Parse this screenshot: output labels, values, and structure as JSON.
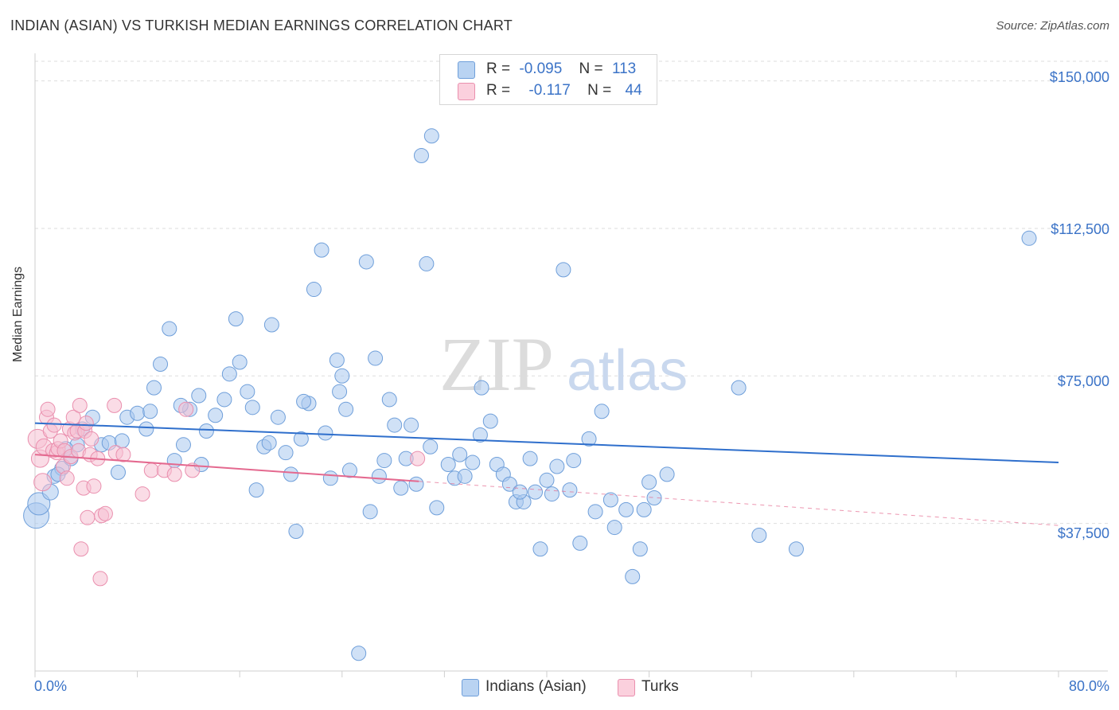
{
  "title": "INDIAN (ASIAN) VS TURKISH MEDIAN EARNINGS CORRELATION CHART",
  "source": "Source: ZipAtlas.com",
  "watermark": {
    "zip": "ZIP",
    "atlas": "atlas"
  },
  "colors": {
    "blue_fill": "#a9c8ee",
    "blue_stroke": "#6f9fda",
    "blue_line": "#2f6fcc",
    "pink_fill": "#f6bfd1",
    "pink_stroke": "#ea8fae",
    "pink_line": "#e4698f",
    "accent_text": "#3b73c7",
    "grid": "#dedede"
  },
  "stats": [
    {
      "r_label": "R =",
      "r_value": "-0.095",
      "n_label": "N =",
      "n_value": "113"
    },
    {
      "r_label": "R =",
      "r_value": "-0.117",
      "n_label": "N =",
      "n_value": "44"
    }
  ],
  "chart_data": {
    "type": "scatter",
    "title": "INDIAN (ASIAN) VS TURKISH MEDIAN EARNINGS CORRELATION CHART",
    "xlabel": "",
    "ylabel": "Median Earnings",
    "x_tick_labels": [
      "0.0%",
      "80.0%"
    ],
    "y_tick_labels": [
      "$150,000",
      "$112,500",
      "$75,000",
      "$37,500"
    ],
    "y_ticks": [
      150000,
      112500,
      75000,
      37500
    ],
    "xlim": [
      0,
      80
    ],
    "ylim": [
      0,
      157000
    ],
    "grid": true,
    "legend_placement": "bottom",
    "series": [
      {
        "name": "Indians (Asian)",
        "color": "#a9c8ee",
        "trend": {
          "x0": 0,
          "y0": 63000,
          "x1": 80,
          "y1": 53000
        },
        "points": [
          [
            0.1,
            39500,
            16
          ],
          [
            0.3,
            42500,
            14
          ],
          [
            1.2,
            45500,
            10
          ],
          [
            1.5,
            49500,
            9
          ],
          [
            2.1,
            51500,
            9
          ],
          [
            2.8,
            54000,
            9
          ],
          [
            3.3,
            57500,
            9
          ],
          [
            3.7,
            61500,
            9
          ],
          [
            1.8,
            50000,
            9
          ],
          [
            2.4,
            56500,
            9
          ],
          [
            4.5,
            64500,
            9
          ],
          [
            5.2,
            57500,
            9
          ],
          [
            5.8,
            58000,
            9
          ],
          [
            6.5,
            50500,
            9
          ],
          [
            7.2,
            64500,
            9
          ],
          [
            8.0,
            65500,
            9
          ],
          [
            8.7,
            61500,
            9
          ],
          [
            9.3,
            72000,
            9
          ],
          [
            9.8,
            78000,
            9
          ],
          [
            10.5,
            87000,
            9
          ],
          [
            10.9,
            53500,
            9
          ],
          [
            11.6,
            57500,
            9
          ],
          [
            12.1,
            66500,
            9
          ],
          [
            12.8,
            70000,
            9
          ],
          [
            13.4,
            61000,
            9
          ],
          [
            14.1,
            65000,
            9
          ],
          [
            14.8,
            69000,
            9
          ],
          [
            15.2,
            75500,
            9
          ],
          [
            15.7,
            89500,
            9
          ],
          [
            16.0,
            78500,
            9
          ],
          [
            16.6,
            71000,
            9
          ],
          [
            17.0,
            67000,
            9
          ],
          [
            17.3,
            46000,
            9
          ],
          [
            17.9,
            57000,
            9
          ],
          [
            18.5,
            88000,
            9
          ],
          [
            19.0,
            64500,
            9
          ],
          [
            19.6,
            55500,
            9
          ],
          [
            20.0,
            50000,
            9
          ],
          [
            20.4,
            35500,
            9
          ],
          [
            20.8,
            59000,
            9
          ],
          [
            21.4,
            68000,
            9
          ],
          [
            21.8,
            97000,
            9
          ],
          [
            22.4,
            107000,
            9
          ],
          [
            22.7,
            60500,
            9
          ],
          [
            23.1,
            49000,
            9
          ],
          [
            23.6,
            79000,
            9
          ],
          [
            24.0,
            75000,
            9
          ],
          [
            24.3,
            66500,
            9
          ],
          [
            24.6,
            51000,
            9
          ],
          [
            25.3,
            4500,
            9
          ],
          [
            25.9,
            104000,
            9
          ],
          [
            26.2,
            40500,
            9
          ],
          [
            26.6,
            79500,
            9
          ],
          [
            27.3,
            53500,
            9
          ],
          [
            27.7,
            69000,
            9
          ],
          [
            28.1,
            62500,
            9
          ],
          [
            28.6,
            46500,
            9
          ],
          [
            29.0,
            54000,
            9
          ],
          [
            29.4,
            62500,
            9
          ],
          [
            29.8,
            47500,
            9
          ],
          [
            30.2,
            131000,
            9
          ],
          [
            30.6,
            103500,
            9
          ],
          [
            31.0,
            136000,
            9
          ],
          [
            31.4,
            41500,
            9
          ],
          [
            32.3,
            52500,
            9
          ],
          [
            32.8,
            49000,
            9
          ],
          [
            33.2,
            55000,
            9
          ],
          [
            33.6,
            49500,
            9
          ],
          [
            34.8,
            60000,
            9
          ],
          [
            34.9,
            72000,
            9
          ],
          [
            35.6,
            63500,
            9
          ],
          [
            36.1,
            52500,
            9
          ],
          [
            36.6,
            50000,
            9
          ],
          [
            37.1,
            47500,
            9
          ],
          [
            37.6,
            43000,
            9
          ],
          [
            38.2,
            43000,
            9
          ],
          [
            38.7,
            54000,
            9
          ],
          [
            39.1,
            45500,
            9
          ],
          [
            39.5,
            31000,
            9
          ],
          [
            40.4,
            45000,
            9
          ],
          [
            40.8,
            52000,
            9
          ],
          [
            41.3,
            102000,
            9
          ],
          [
            41.8,
            46000,
            9
          ],
          [
            42.6,
            32500,
            9
          ],
          [
            43.3,
            59000,
            9
          ],
          [
            43.8,
            40500,
            9
          ],
          [
            44.3,
            66000,
            9
          ],
          [
            45.3,
            36500,
            9
          ],
          [
            46.2,
            41000,
            9
          ],
          [
            46.7,
            24000,
            9
          ],
          [
            47.3,
            31000,
            9
          ],
          [
            47.6,
            41000,
            9
          ],
          [
            48.4,
            44000,
            9
          ],
          [
            49.4,
            50000,
            9
          ],
          [
            55.0,
            72000,
            9
          ],
          [
            56.6,
            34500,
            9
          ],
          [
            59.5,
            31000,
            9
          ],
          [
            77.7,
            110000,
            9
          ],
          [
            6.8,
            58500,
            9
          ],
          [
            9.0,
            66000,
            9
          ],
          [
            11.4,
            67500,
            9
          ],
          [
            13.0,
            52500,
            9
          ],
          [
            18.3,
            58000,
            9
          ],
          [
            21.0,
            68500,
            9
          ],
          [
            23.8,
            71000,
            9
          ],
          [
            26.9,
            49500,
            9
          ],
          [
            30.9,
            57000,
            9
          ],
          [
            34.2,
            53000,
            9
          ],
          [
            37.9,
            45500,
            9
          ],
          [
            40.0,
            48500,
            9
          ],
          [
            42.1,
            53500,
            9
          ],
          [
            45.0,
            43500,
            9
          ],
          [
            48.0,
            48000,
            9
          ]
        ]
      },
      {
        "name": "Turks",
        "color": "#f6bfd1",
        "trend": {
          "x0": 0,
          "y0": 55000,
          "x1": 30,
          "y1": 48200
        },
        "trend_extended": {
          "x0": 30,
          "y0": 48200,
          "x1": 80,
          "y1": 37000
        },
        "points": [
          [
            0.2,
            59000,
            12
          ],
          [
            0.4,
            54000,
            11
          ],
          [
            0.6,
            48000,
            11
          ],
          [
            0.7,
            57000,
            10
          ],
          [
            0.9,
            64500,
            9
          ],
          [
            1.0,
            66500,
            9
          ],
          [
            1.2,
            61000,
            9
          ],
          [
            1.4,
            56000,
            9
          ],
          [
            1.5,
            62500,
            9
          ],
          [
            1.7,
            55500,
            9
          ],
          [
            1.8,
            56500,
            9
          ],
          [
            2.0,
            58500,
            9
          ],
          [
            2.2,
            52000,
            9
          ],
          [
            2.3,
            56000,
            9
          ],
          [
            2.5,
            49000,
            9
          ],
          [
            2.7,
            61500,
            9
          ],
          [
            2.8,
            54500,
            9
          ],
          [
            3.0,
            64500,
            9
          ],
          [
            3.1,
            60500,
            9
          ],
          [
            3.3,
            61000,
            9
          ],
          [
            3.4,
            56000,
            9
          ],
          [
            3.5,
            67500,
            9
          ],
          [
            3.6,
            31000,
            9
          ],
          [
            3.8,
            46500,
            9
          ],
          [
            3.9,
            61000,
            9
          ],
          [
            4.0,
            63000,
            9
          ],
          [
            4.1,
            39000,
            9
          ],
          [
            4.3,
            55000,
            9
          ],
          [
            4.4,
            59000,
            9
          ],
          [
            4.6,
            47000,
            9
          ],
          [
            4.9,
            54000,
            9
          ],
          [
            5.1,
            23500,
            9
          ],
          [
            5.2,
            39500,
            9
          ],
          [
            5.5,
            40000,
            9
          ],
          [
            6.2,
            67500,
            9
          ],
          [
            6.3,
            55500,
            9
          ],
          [
            6.9,
            55000,
            9
          ],
          [
            8.4,
            45000,
            9
          ],
          [
            9.1,
            51000,
            9
          ],
          [
            10.1,
            51000,
            9
          ],
          [
            10.9,
            50000,
            9
          ],
          [
            11.8,
            66500,
            9
          ],
          [
            12.3,
            51000,
            9
          ],
          [
            29.9,
            54000,
            9
          ]
        ]
      }
    ]
  }
}
